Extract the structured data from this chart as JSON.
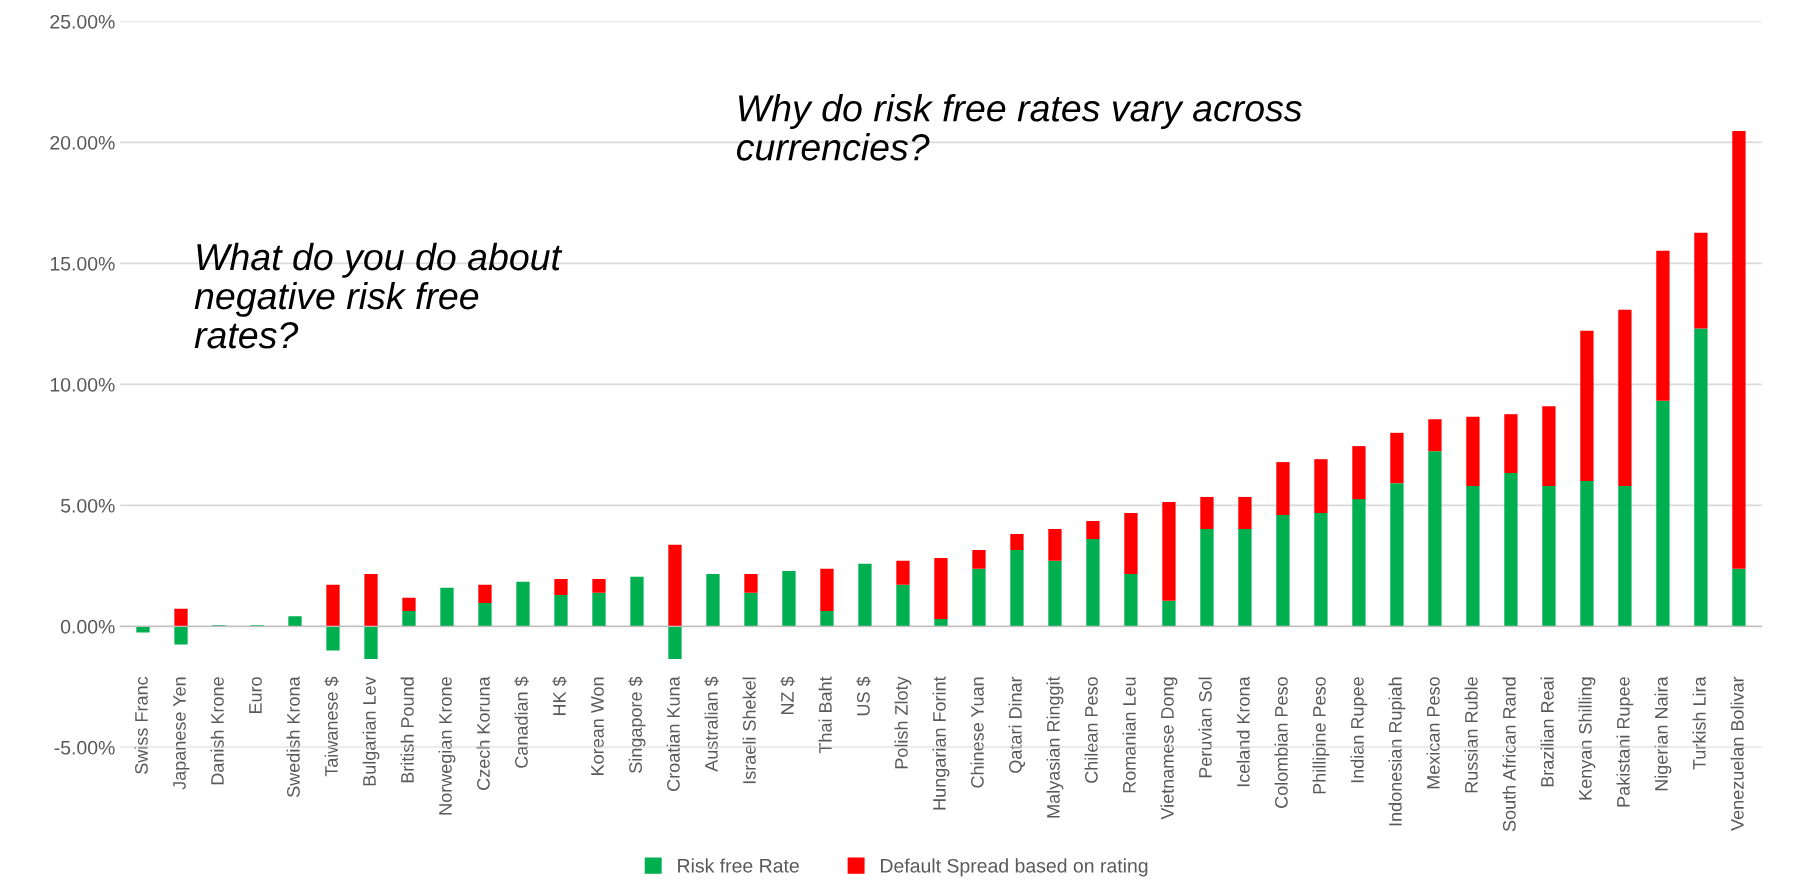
{
  "chart_data": {
    "type": "bar",
    "stacked": true,
    "categories": [
      "Swiss Franc",
      "Japanese Yen",
      "Danish Krone",
      "Euro",
      "Swedish Krona",
      "Taiwanese $",
      "Bulgarian Lev",
      "British Pound",
      "Norwegian Krone",
      "Czech Koruna",
      "Canadian $",
      "HK $",
      "Korean Won",
      "Singapore $",
      "Croatian Kuna",
      "Australian $",
      "Israeli Shekel",
      "NZ $",
      "Thai Baht",
      "US $",
      "Polish Zloty",
      "Hungarian Forint",
      "Chinese Yuan",
      "Qatari Dinar",
      "Malyasian Ringgit",
      "Chilean Peso",
      "Romanian Leu",
      "Vietnamese Dong",
      "Peruvian Sol",
      "Iceland Krona",
      "Colombian Peso",
      "Phillipine Peso",
      "Indian Rupee",
      "Indonesian Rupiah",
      "Mexican Peso",
      "Russian Ruble",
      "South African Rand",
      "Brazilian Reai",
      "Kenyan Shilling",
      "Pakistani Rupee",
      "Nigerian Naira",
      "Turkish Lira",
      "Venezuelan Bolivar"
    ],
    "series": [
      {
        "name": "Risk free Rate",
        "color": "#00b050",
        "values": [
          -0.25,
          -0.75,
          0.05,
          0.05,
          0.42,
          -1.0,
          -1.35,
          0.64,
          1.6,
          0.97,
          1.84,
          1.3,
          1.39,
          2.05,
          -1.35,
          2.17,
          1.39,
          2.29,
          0.64,
          2.59,
          1.72,
          0.31,
          2.38,
          3.16,
          2.71,
          3.61,
          2.17,
          1.06,
          4.03,
          4.03,
          4.6,
          4.69,
          5.26,
          5.92,
          7.24,
          5.8,
          6.34,
          5.8,
          6.01,
          5.8,
          9.32,
          12.31,
          2.38
        ]
      },
      {
        "name": "Default Spread based on rating",
        "color": "#ff0000",
        "values": [
          0,
          0.73,
          0,
          0,
          0,
          1.72,
          2.17,
          0.54,
          0,
          0.75,
          0,
          0.66,
          0.57,
          0,
          3.37,
          0,
          0.78,
          0,
          1.74,
          0,
          0.99,
          2.52,
          0.78,
          0.66,
          1.32,
          0.75,
          2.52,
          4.08,
          1.32,
          1.32,
          2.19,
          2.22,
          2.19,
          2.08,
          1.32,
          2.86,
          2.43,
          3.3,
          6.21,
          7.29,
          6.2,
          3.96,
          18.09
        ]
      }
    ],
    "ylim": [
      -5,
      25
    ],
    "yticks": [
      {
        "value": -5,
        "label": "-5.00%"
      },
      {
        "value": 0,
        "label": "0.00%"
      },
      {
        "value": 5,
        "label": "5.00%"
      },
      {
        "value": 10,
        "label": "10.00%"
      },
      {
        "value": 15,
        "label": "15.00%"
      },
      {
        "value": 20,
        "label": "20.00%"
      },
      {
        "value": 25,
        "label": "25.00%"
      }
    ],
    "grid": "y",
    "legend": "bottom",
    "annotations": [
      "What do you do about\nnegative risk free\nrates?",
      "Why do risk free rates vary across\ncurrencies?"
    ]
  }
}
